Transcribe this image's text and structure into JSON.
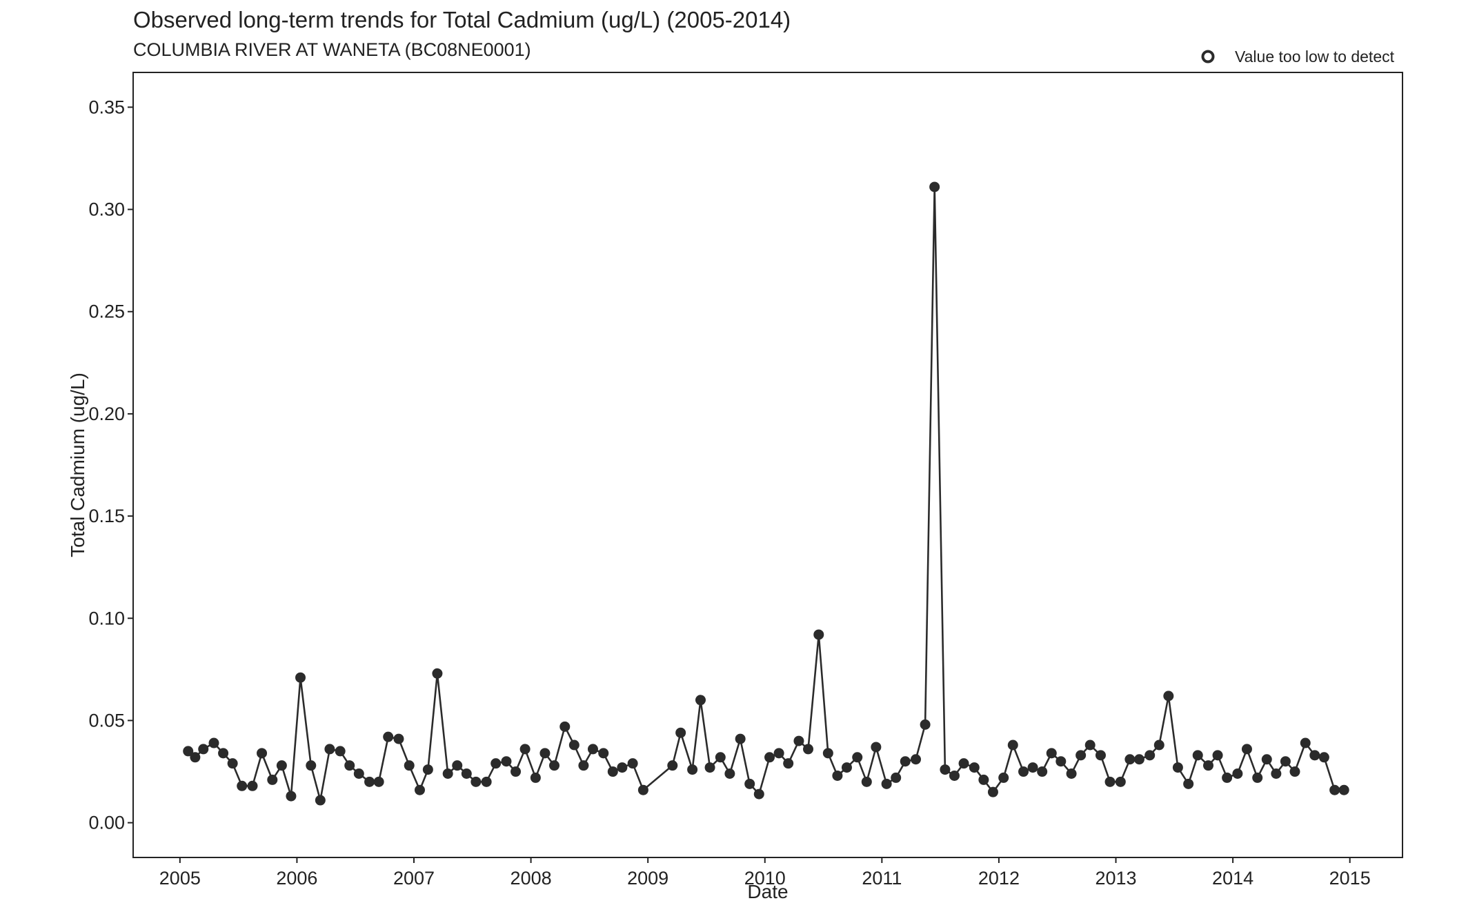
{
  "chart_data": {
    "type": "line",
    "title": "Observed long-term trends for Total Cadmium (ug/L) (2005-2014)",
    "subtitle": "COLUMBIA RIVER AT WANETA (BC08NE0001)",
    "xlabel": "Date",
    "ylabel": "Total Cadmium (ug/L)",
    "xlim": [
      2004.6,
      2015.45
    ],
    "ylim": [
      -0.017,
      0.367
    ],
    "x_ticks": [
      2005,
      2006,
      2007,
      2008,
      2009,
      2010,
      2011,
      2012,
      2013,
      2014,
      2015
    ],
    "x_tick_labels": [
      "2005",
      "2006",
      "2007",
      "2008",
      "2009",
      "2010",
      "2011",
      "2012",
      "2013",
      "2014",
      "2015"
    ],
    "y_ticks": [
      0.0,
      0.05,
      0.1,
      0.15,
      0.2,
      0.25,
      0.3,
      0.35
    ],
    "y_tick_labels": [
      "0.00",
      "0.05",
      "0.10",
      "0.15",
      "0.20",
      "0.25",
      "0.30",
      "0.35"
    ],
    "grid": false,
    "legend": {
      "position": "top-right",
      "entries": [
        {
          "label": "Value too low to detect",
          "marker": "open-circle"
        }
      ]
    },
    "colors": {
      "series": "#2b2b2b",
      "axis": "#222222"
    },
    "series": [
      {
        "x": [
          2005.07,
          2005.13,
          2005.2,
          2005.29,
          2005.37,
          2005.45,
          2005.53,
          2005.62,
          2005.7,
          2005.79,
          2005.87,
          2005.95,
          2006.03,
          2006.12,
          2006.2,
          2006.28,
          2006.37,
          2006.45,
          2006.53,
          2006.62,
          2006.7,
          2006.78,
          2006.87,
          2006.96,
          2007.05,
          2007.12,
          2007.2,
          2007.29,
          2007.37,
          2007.45,
          2007.53,
          2007.62,
          2007.7,
          2007.79,
          2007.87,
          2007.95,
          2008.04,
          2008.12,
          2008.2,
          2008.29,
          2008.37,
          2008.45,
          2008.53,
          2008.62,
          2008.7,
          2008.78,
          2008.87,
          2008.96,
          2009.21,
          2009.28,
          2009.38,
          2009.45,
          2009.53,
          2009.62,
          2009.7,
          2009.79,
          2009.87,
          2009.95,
          2010.04,
          2010.12,
          2010.2,
          2010.29,
          2010.37,
          2010.46,
          2010.54,
          2010.62,
          2010.7,
          2010.79,
          2010.87,
          2010.95,
          2011.04,
          2011.12,
          2011.2,
          2011.29,
          2011.37,
          2011.45,
          2011.54,
          2011.62,
          2011.7,
          2011.79,
          2011.87,
          2011.95,
          2012.04,
          2012.12,
          2012.21,
          2012.29,
          2012.37,
          2012.45,
          2012.53,
          2012.62,
          2012.7,
          2012.78,
          2012.87,
          2012.95,
          2013.04,
          2013.12,
          2013.2,
          2013.29,
          2013.37,
          2013.45,
          2013.53,
          2013.62,
          2013.7,
          2013.79,
          2013.87,
          2013.95,
          2014.04,
          2014.12,
          2014.21,
          2014.29,
          2014.37,
          2014.45,
          2014.53,
          2014.62,
          2014.7,
          2014.78,
          2014.87,
          2014.95
        ],
        "y": [
          0.035,
          0.032,
          0.036,
          0.039,
          0.034,
          0.029,
          0.018,
          0.018,
          0.034,
          0.021,
          0.028,
          0.013,
          0.071,
          0.028,
          0.011,
          0.036,
          0.035,
          0.028,
          0.024,
          0.02,
          0.02,
          0.042,
          0.041,
          0.028,
          0.016,
          0.026,
          0.073,
          0.024,
          0.028,
          0.024,
          0.02,
          0.02,
          0.029,
          0.03,
          0.025,
          0.036,
          0.022,
          0.034,
          0.028,
          0.047,
          0.038,
          0.028,
          0.036,
          0.034,
          0.025,
          0.027,
          0.029,
          0.016,
          0.028,
          0.044,
          0.026,
          0.06,
          0.027,
          0.032,
          0.024,
          0.041,
          0.019,
          0.014,
          0.032,
          0.034,
          0.029,
          0.04,
          0.036,
          0.092,
          0.034,
          0.023,
          0.027,
          0.032,
          0.02,
          0.037,
          0.019,
          0.022,
          0.03,
          0.031,
          0.048,
          0.311,
          0.026,
          0.023,
          0.029,
          0.027,
          0.021,
          0.015,
          0.022,
          0.038,
          0.025,
          0.027,
          0.025,
          0.034,
          0.03,
          0.024,
          0.033,
          0.038,
          0.033,
          0.02,
          0.02,
          0.031,
          0.031,
          0.033,
          0.038,
          0.062,
          0.027,
          0.019,
          0.033,
          0.028,
          0.033,
          0.022,
          0.024,
          0.036,
          0.022,
          0.031,
          0.024,
          0.03,
          0.025,
          0.039,
          0.033,
          0.032,
          0.016,
          0.016
        ]
      }
    ]
  }
}
